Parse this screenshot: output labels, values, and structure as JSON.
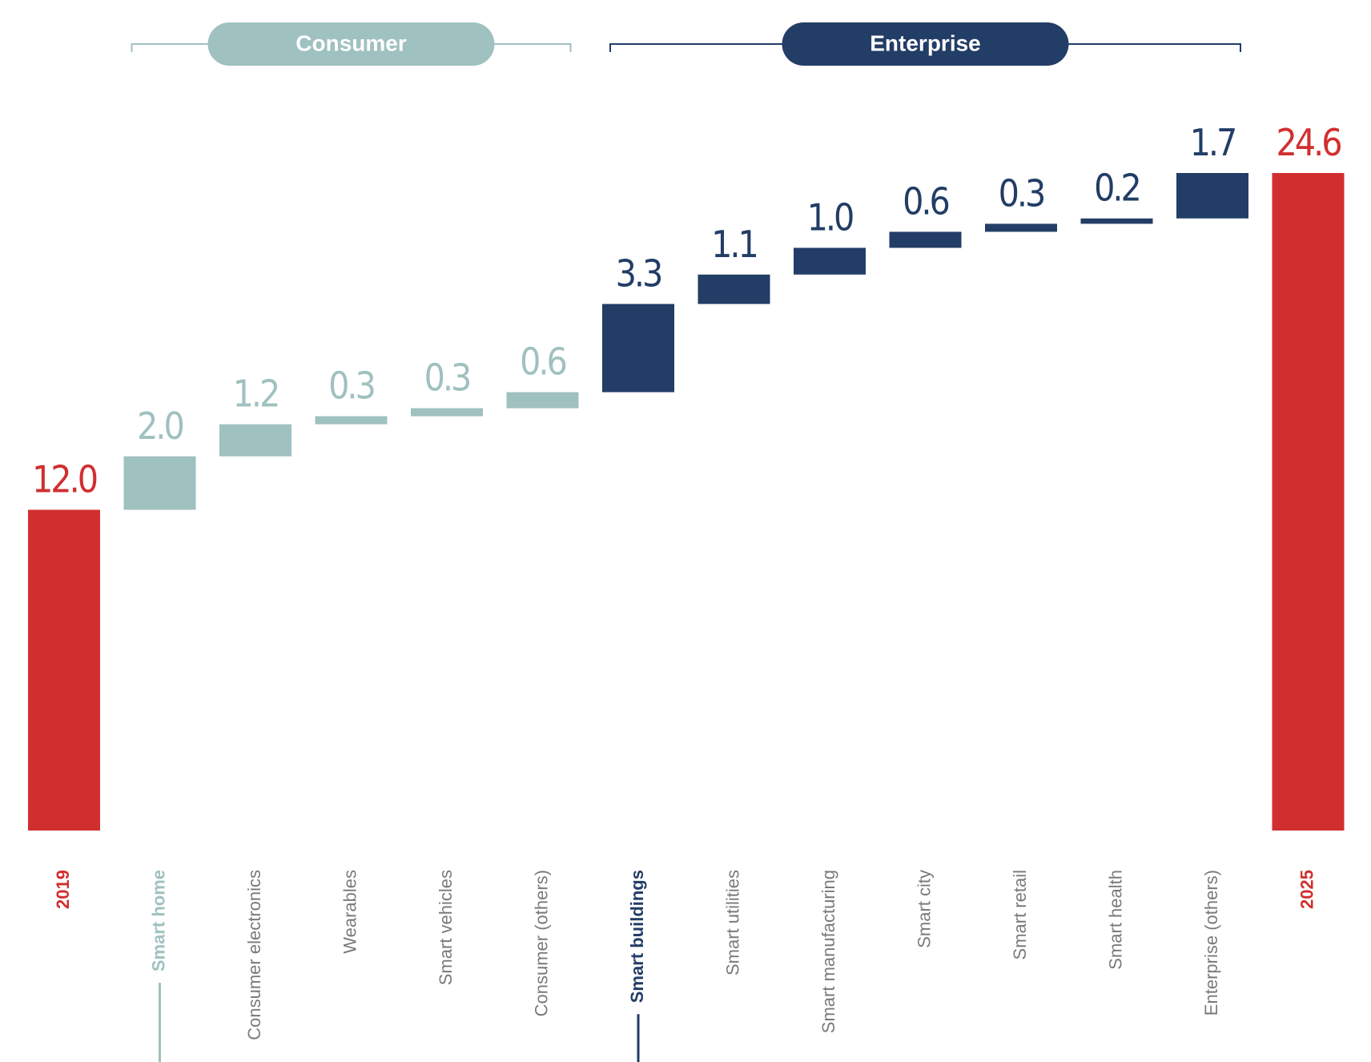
{
  "chart_data": {
    "type": "waterfall",
    "start": {
      "category": "2019",
      "value": 12.0,
      "value_label": "12.0",
      "color": "#d12f2f"
    },
    "groups": [
      {
        "name": "Consumer",
        "color": "#9fc1bf",
        "categories": [
          "Smart home",
          "Consumer electronics",
          "Wearables",
          "Smart vehicles",
          "Consumer (others)"
        ],
        "values": [
          2.0,
          1.2,
          0.3,
          0.3,
          0.6
        ],
        "value_labels": [
          "2.0",
          "1.2",
          "0.3",
          "0.3",
          "0.6"
        ]
      },
      {
        "name": "Enterprise",
        "color": "#223d66",
        "categories": [
          "Smart buildings",
          "Smart utilities",
          "Smart manufacturing",
          "Smart city",
          "Smart retail",
          "Smart health",
          "Enterprise (others)"
        ],
        "values": [
          3.3,
          1.1,
          1.0,
          0.6,
          0.3,
          0.2,
          1.7
        ],
        "value_labels": [
          "3.3",
          "1.1",
          "1.0",
          "0.6",
          "0.3",
          "0.2",
          "1.7"
        ]
      }
    ],
    "end": {
      "category": "2025",
      "value": 24.6,
      "value_label": "24.6",
      "color": "#d12f2f"
    }
  }
}
